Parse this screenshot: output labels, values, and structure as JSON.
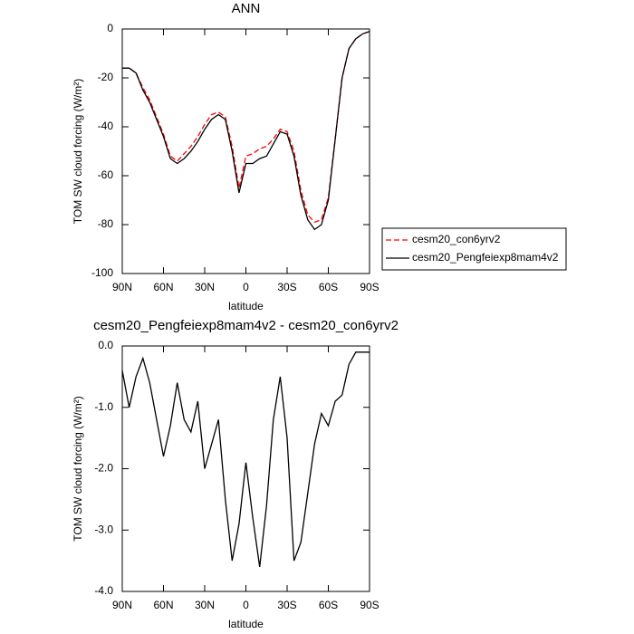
{
  "chart_data": [
    {
      "type": "line",
      "title": "ANN",
      "xlabel": "latitude",
      "ylabel": "TOM SW cloud forcing (W/m²)",
      "x": [
        90,
        85,
        80,
        75,
        70,
        65,
        60,
        55,
        50,
        45,
        40,
        35,
        30,
        25,
        20,
        15,
        10,
        5,
        0,
        -5,
        -10,
        -15,
        -20,
        -25,
        -30,
        -35,
        -40,
        -45,
        -50,
        -55,
        -60,
        -65,
        -70,
        -75,
        -80,
        -85,
        -90
      ],
      "xlim": [
        90,
        -90
      ],
      "xticks": [
        {
          "value": 90,
          "label": "90N"
        },
        {
          "value": 60,
          "label": "60N"
        },
        {
          "value": 30,
          "label": "30N"
        },
        0,
        {
          "value": -30,
          "label": "30S"
        },
        {
          "value": -60,
          "label": "60S"
        },
        {
          "value": -90,
          "label": "90S"
        }
      ],
      "ylim": [
        -100,
        0
      ],
      "yticks": [
        0,
        -20,
        -40,
        -60,
        -80,
        -100
      ],
      "legend_position": "right",
      "series": [
        {
          "name": "cesm20_con6yrv2",
          "color": "#ff0000",
          "dashed": true,
          "values": [
            -16,
            -16,
            -18,
            -24,
            -29,
            -36,
            -43,
            -52,
            -54,
            -51,
            -48,
            -44,
            -39,
            -35,
            -34,
            -36,
            -48,
            -65,
            -52,
            -51,
            -49,
            -48,
            -45,
            -41,
            -42,
            -50,
            -66,
            -76,
            -79,
            -78,
            -69,
            -45,
            -20,
            -8,
            -4,
            -2,
            -1
          ]
        },
        {
          "name": "cesm20_Pengfeiexp8mam4v2",
          "color": "#000000",
          "dashed": false,
          "values": [
            -16,
            -16,
            -18,
            -25,
            -30,
            -37,
            -44,
            -53,
            -55,
            -53,
            -50,
            -46,
            -41,
            -37,
            -35,
            -37,
            -50,
            -67,
            -55,
            -55,
            -53,
            -52,
            -47,
            -42,
            -43,
            -52,
            -68,
            -78,
            -82,
            -80,
            -70,
            -45,
            -20,
            -8,
            -4,
            -2,
            -1
          ]
        }
      ]
    },
    {
      "type": "line",
      "title": "cesm20_Pengfeiexp8mam4v2 - cesm20_con6yrv2",
      "xlabel": "latitude",
      "ylabel": "TOM SW cloud forcing (W/m²)",
      "x": [
        90,
        85,
        80,
        75,
        70,
        65,
        60,
        55,
        50,
        45,
        40,
        35,
        30,
        25,
        20,
        15,
        10,
        5,
        0,
        -5,
        -10,
        -15,
        -20,
        -25,
        -30,
        -35,
        -40,
        -45,
        -50,
        -55,
        -60,
        -65,
        -70,
        -75,
        -80,
        -85,
        -90
      ],
      "xlim": [
        90,
        -90
      ],
      "xticks": [
        {
          "value": 90,
          "label": "90N"
        },
        {
          "value": 60,
          "label": "60N"
        },
        {
          "value": 30,
          "label": "30N"
        },
        0,
        {
          "value": -30,
          "label": "30S"
        },
        {
          "value": -60,
          "label": "60S"
        },
        {
          "value": -90,
          "label": "90S"
        }
      ],
      "ylim": [
        -4,
        0
      ],
      "yticks": [
        {
          "value": 0,
          "label": "0.0"
        },
        {
          "value": -1,
          "label": "-1.0"
        },
        {
          "value": -2,
          "label": "-2.0"
        },
        {
          "value": -3,
          "label": "-3.0"
        },
        {
          "value": -4,
          "label": "-4.0"
        }
      ],
      "series": [
        {
          "color": "#000000",
          "dashed": false,
          "values": [
            -0.4,
            -1.0,
            -0.5,
            -0.2,
            -0.6,
            -1.2,
            -1.8,
            -1.3,
            -0.6,
            -1.2,
            -1.4,
            -0.9,
            -2.0,
            -1.6,
            -1.2,
            -2.5,
            -3.5,
            -2.9,
            -1.9,
            -2.8,
            -3.6,
            -2.6,
            -1.2,
            -0.5,
            -1.5,
            -3.5,
            -3.2,
            -2.4,
            -1.6,
            -1.1,
            -1.3,
            -0.9,
            -0.8,
            -0.3,
            -0.1,
            -0.1,
            -0.1
          ]
        }
      ]
    }
  ]
}
